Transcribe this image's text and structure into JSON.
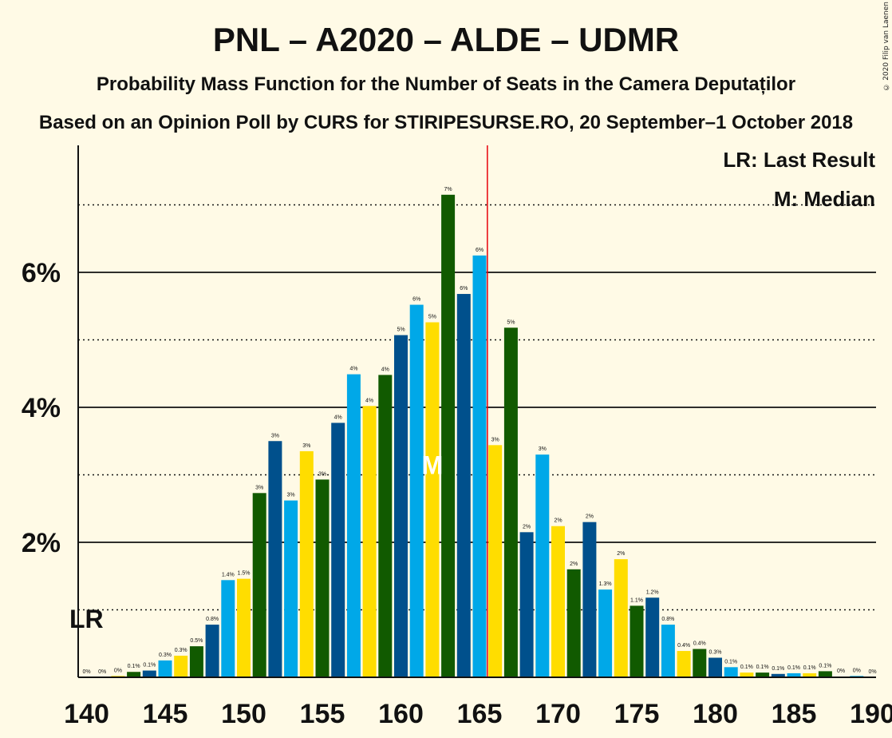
{
  "chart_data": {
    "type": "bar",
    "title": "PNL – A2020 – ALDE – UDMR",
    "subtitle": "Probability Mass Function for the Number of Seats in the Camera Deputaților",
    "subtitle2": "Based on an Opinion Poll by CURS for STIRIPESURSE.RO, 20 September–1 October 2018",
    "copyright": "© 2020 Filip van Laenen",
    "legend_lr": "LR: Last Result",
    "legend_m": "M: Median",
    "lr_label": "LR",
    "median_label": "M",
    "x_ticks": [
      "140",
      "145",
      "150",
      "155",
      "160",
      "165",
      "170",
      "175",
      "180",
      "185",
      "190"
    ],
    "y_ticks": [
      "2%",
      "4%",
      "6%"
    ],
    "ylim": [
      0,
      7.8
    ],
    "last_result": 141,
    "median": 162,
    "majority_line": 165.5,
    "x": [
      140,
      141,
      142,
      143,
      144,
      145,
      146,
      147,
      148,
      149,
      150,
      151,
      152,
      153,
      154,
      155,
      156,
      157,
      158,
      159,
      160,
      161,
      162,
      163,
      164,
      165,
      166,
      167,
      168,
      169,
      170,
      171,
      172,
      173,
      174,
      175,
      176,
      177,
      178,
      179,
      180,
      181,
      182,
      183,
      184,
      185,
      186,
      187,
      188,
      189,
      190
    ],
    "values": [
      0.0,
      0.0,
      0.02,
      0.08,
      0.1,
      0.25,
      0.32,
      0.46,
      0.78,
      1.44,
      1.46,
      2.73,
      3.5,
      2.62,
      3.35,
      2.93,
      3.77,
      4.49,
      4.02,
      4.48,
      5.07,
      5.52,
      5.26,
      7.15,
      5.68,
      6.25,
      3.44,
      5.18,
      2.15,
      3.3,
      2.24,
      1.6,
      2.3,
      1.3,
      1.75,
      1.06,
      1.18,
      0.78,
      0.39,
      0.42,
      0.29,
      0.15,
      0.07,
      0.07,
      0.05,
      0.06,
      0.06,
      0.09,
      0.01,
      0.02,
      0.0
    ],
    "labels": [
      "0%",
      "0%",
      "0%",
      "0.1%",
      "0.1%",
      "0.3%",
      "0.3%",
      "0.5%",
      "0.8%",
      "1.4%",
      "1.5%",
      "3%",
      "3%",
      "3%",
      "3%",
      "3%",
      "4%",
      "4%",
      "4%",
      "4%",
      "5%",
      "6%",
      "5%",
      "7%",
      "6%",
      "6%",
      "3%",
      "5%",
      "2%",
      "3%",
      "2%",
      "2%",
      "2%",
      "1.3%",
      "2%",
      "1.1%",
      "1.2%",
      "0.8%",
      "0.4%",
      "0.4%",
      "0.3%",
      "0.1%",
      "0.1%",
      "0.1%",
      "0.1%",
      "0.1%",
      "0.1%",
      "0.1%",
      "0%",
      "0%",
      "0%"
    ],
    "colors": {
      "light_blue": "#00a8e8",
      "dark_blue": "#00508c",
      "dark_green": "#115a00",
      "yellow": "#ffdd00",
      "majority_line": "#e8000b"
    },
    "color_cycle": [
      "dark_blue",
      "light_blue",
      "yellow",
      "dark_green"
    ]
  }
}
